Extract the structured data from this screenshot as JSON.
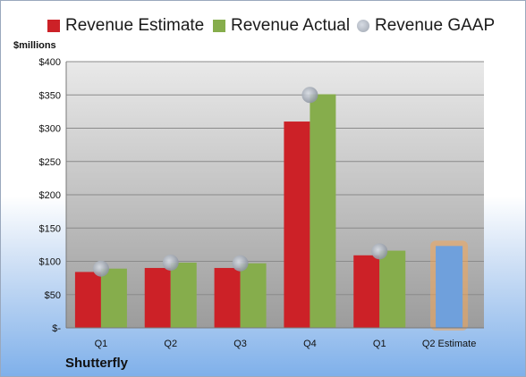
{
  "chart_data": {
    "type": "bar",
    "ylabel": "$millions",
    "company": "Shutterfly",
    "categories": [
      "Q1",
      "Q2",
      "Q3",
      "Q4",
      "Q1",
      "Q2 Estimate"
    ],
    "ylim": [
      0,
      400
    ],
    "yticks": [
      0,
      50,
      100,
      150,
      200,
      250,
      300,
      350,
      400
    ],
    "ytick_labels": [
      "$-",
      "$50",
      "$100",
      "$150",
      "$200",
      "$250",
      "$300",
      "$350",
      "$400"
    ],
    "legend_position": "top",
    "grid": true,
    "series": [
      {
        "name": "Revenue Estimate",
        "type": "bar",
        "color": "#cc2127",
        "values": [
          84,
          90,
          90,
          310,
          109,
          null
        ]
      },
      {
        "name": "Revenue Actual",
        "type": "bar",
        "color": "#86ad4c",
        "values": [
          89,
          98,
          97,
          351,
          116,
          null
        ]
      },
      {
        "name": "Revenue GAAP",
        "type": "marker",
        "color": "#b8bec8",
        "values": [
          89,
          98,
          97,
          350,
          115,
          null
        ]
      },
      {
        "name": "Q2 Estimate",
        "type": "bar",
        "color": "#6fa0dc",
        "outline": "#f0a65a",
        "values": [
          null,
          null,
          null,
          null,
          null,
          123
        ]
      }
    ]
  }
}
